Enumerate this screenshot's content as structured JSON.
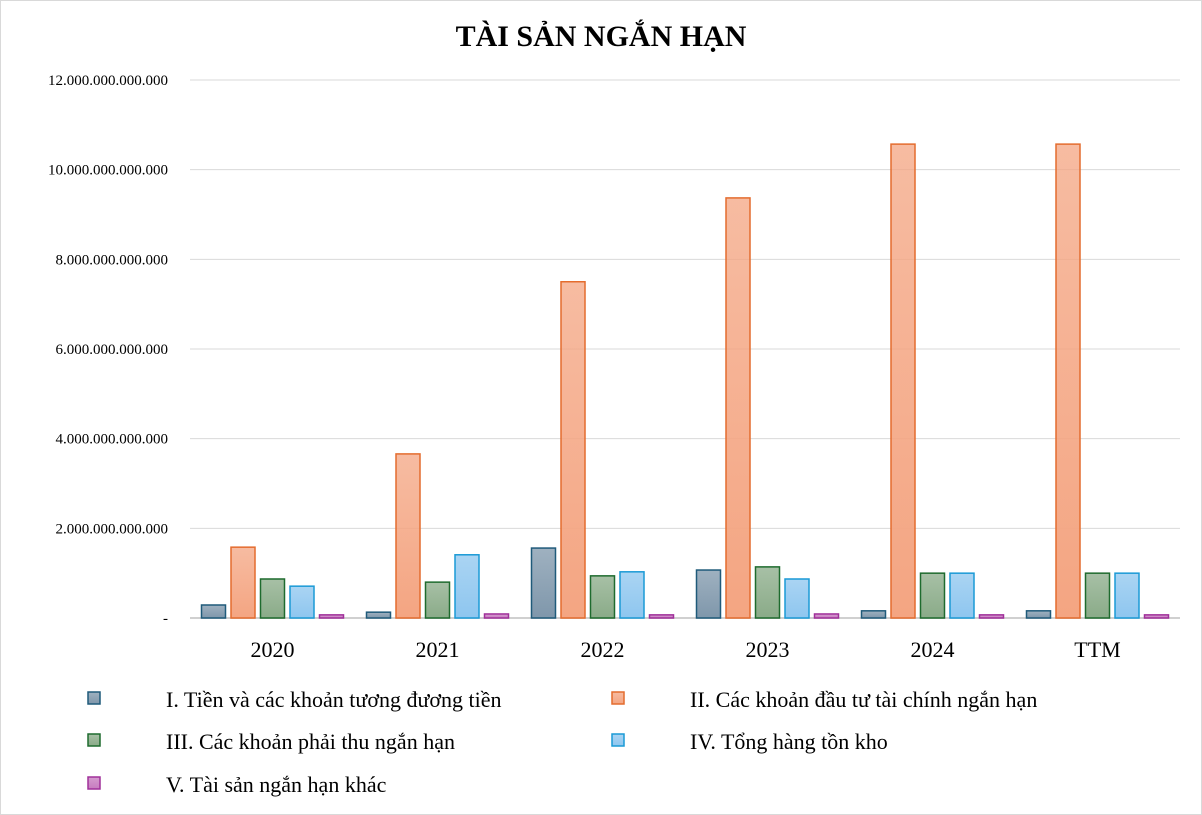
{
  "chart_data": {
    "type": "bar",
    "title": "TÀI SẢN NGẮN HẠN",
    "categories": [
      "2020",
      "2021",
      "2022",
      "2023",
      "2024",
      "TTM"
    ],
    "ylim": [
      0,
      12000000000000
    ],
    "yticks": [
      0,
      2000000000000,
      4000000000000,
      6000000000000,
      8000000000000,
      10000000000000,
      12000000000000
    ],
    "ytick_labels": [
      "-",
      "2.000.000.000.000",
      "4.000.000.000.000",
      "6.000.000.000.000",
      "8.000.000.000.000",
      "10.000.000.000.000",
      "12.000.000.000.000"
    ],
    "grid": true,
    "legend_position": "bottom",
    "series": [
      {
        "name": "I. Tiền và các khoản tương đương tiền",
        "color": "#7f97ab",
        "stroke": "#1f5a7a",
        "values": [
          290000000000,
          130000000000,
          1560000000000,
          1070000000000,
          160000000000,
          160000000000
        ]
      },
      {
        "name": "II.  Các khoản đầu tư tài chính ngắn hạn",
        "color": "#f4a582",
        "stroke": "#e46c2e",
        "values": [
          1580000000000,
          3660000000000,
          7500000000000,
          9370000000000,
          10570000000000,
          10570000000000
        ]
      },
      {
        "name": "III.  Các khoản phải thu ngắn hạn",
        "color": "#8aab88",
        "stroke": "#1e6b2e",
        "values": [
          870000000000,
          800000000000,
          940000000000,
          1140000000000,
          1000000000000,
          1000000000000
        ]
      },
      {
        "name": "IV. Tổng hàng tồn kho",
        "color": "#8ec6ef",
        "stroke": "#1a9ad6",
        "values": [
          710000000000,
          1410000000000,
          1030000000000,
          870000000000,
          1000000000000,
          1000000000000
        ]
      },
      {
        "name": "V. Tài sản ngắn hạn khác",
        "color": "#c77bbf",
        "stroke": "#a0309a",
        "values": [
          70000000000,
          90000000000,
          70000000000,
          90000000000,
          70000000000,
          70000000000
        ]
      }
    ]
  }
}
